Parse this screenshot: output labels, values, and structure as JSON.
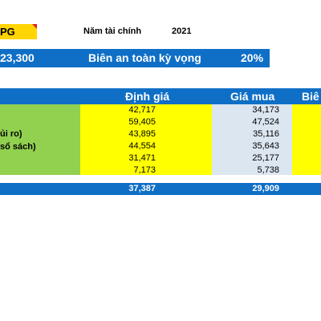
{
  "header": {
    "ticker": "PG",
    "fiscal_year_label": "Năm tài chính",
    "fiscal_year_value": "2021"
  },
  "summary_bar": {
    "price": "23,300",
    "safety_margin_label": "Biên an toàn kỳ vọng",
    "safety_margin_value": "20%"
  },
  "table": {
    "columns": {
      "valuation": "Định giá",
      "buy_price": "Giá mua",
      "margin": "Biê"
    },
    "row_labels": [
      "ủi ro)",
      "sổ sách)"
    ],
    "rows": [
      {
        "valuation": "42,717",
        "buy_price": "34,173"
      },
      {
        "valuation": "59,405",
        "buy_price": "47,524"
      },
      {
        "valuation": "43,895",
        "buy_price": "35,116"
      },
      {
        "valuation": "44,554",
        "buy_price": "35,643"
      },
      {
        "valuation": "31,471",
        "buy_price": "25,177"
      },
      {
        "valuation": "7,173",
        "buy_price": "5,738"
      }
    ],
    "totals": {
      "valuation": "37,387",
      "buy_price": "29,909"
    }
  },
  "colors": {
    "blue": "#0f6fc6",
    "yellow": "#ffff00",
    "ticker_yellow": "#ffd400",
    "green": "#92d050",
    "light_blue_gray": "#dce6f1"
  }
}
